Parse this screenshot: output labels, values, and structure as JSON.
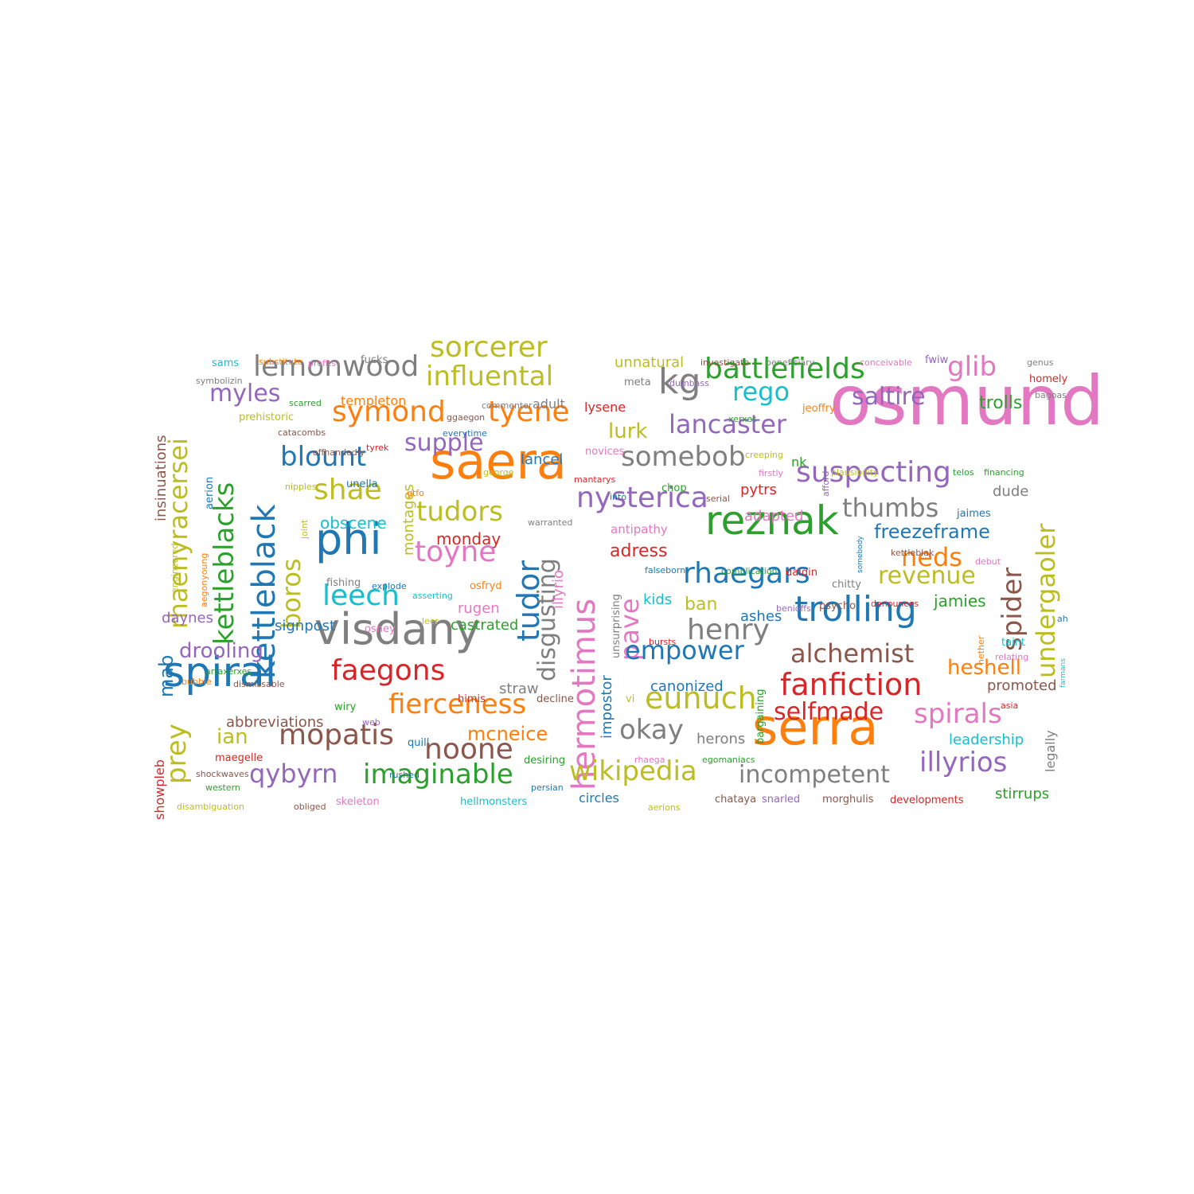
{
  "palette": {
    "blue": "#1f77b4",
    "orange": "#ff7f0e",
    "green": "#2ca02c",
    "red": "#d62728",
    "purple": "#9467bd",
    "brown": "#8c564b",
    "pink": "#e377c2",
    "gray": "#7f7f7f",
    "olive": "#bcbd22",
    "cyan": "#17becf"
  },
  "words": [
    "osmund",
    "saera",
    "serra",
    "visdany",
    "spiral",
    "phi",
    "reznak",
    "trolling",
    "kg",
    "hermotimus",
    "kettleblack",
    "kettleblacks",
    "rhaenyracersei",
    "spider",
    "undergaoler",
    "lemonwood",
    "battlefields",
    "sorcerer",
    "influental",
    "symond",
    "tyene",
    "nysterica",
    "suspecting",
    "rhaegars",
    "somebob",
    "blount",
    "lancaster",
    "glib",
    "saltire",
    "myles",
    "rego",
    "trolls",
    "supple",
    "lurk",
    "shae",
    "tudors",
    "toyne",
    "thumbs",
    "freezeframe",
    "neds",
    "revenue",
    "jamies",
    "henry",
    "leech",
    "boros",
    "tudor",
    "disgusting",
    "pave",
    "empower",
    "alchemist",
    "heshell",
    "fanfiction",
    "selfmade",
    "spirals",
    "eunuch",
    "okay",
    "illyrios",
    "incompetent",
    "wikipedia",
    "imaginable",
    "noone",
    "mopatis",
    "qybyrn",
    "faegons",
    "fierceness",
    "mcneice",
    "drooling",
    "prey",
    "mab",
    "daynes",
    "ian",
    "abbreviations",
    "insinuations",
    "showpleb",
    "promoted",
    "legally",
    "leadership",
    "stirrups",
    "developments",
    "morghulis",
    "snarled",
    "chataya",
    "circles",
    "hellmonsters",
    "skeleton",
    "obliged",
    "disambiguation",
    "adress",
    "monday",
    "castrated",
    "rugen",
    "signpost",
    "kids",
    "ban",
    "ashes",
    "canonized",
    "straw",
    "herons",
    "osfryd",
    "lysene",
    "adult",
    "templeton",
    "unnatural",
    "meta",
    "investigate",
    "beneficiary",
    "conceivable",
    "fwiw",
    "genus",
    "homely",
    "bagoas",
    "jeoffry",
    "dude",
    "pytrs",
    "adapted",
    "antipathy",
    "jaimes",
    "somebody",
    "kettleblak",
    "debut",
    "falseborn",
    "complication",
    "chitty",
    "daidin",
    "psycho",
    "benioffs",
    "denounces",
    "bursts",
    "nether",
    "taint",
    "relating",
    "farmans",
    "ah",
    "asia",
    "telos",
    "financing",
    "plausibility",
    "afford",
    "firstly",
    "creeping",
    "nk",
    "xerxes",
    "chop",
    "serial",
    "mantarys",
    "into",
    "lancel",
    "novices",
    "george",
    "warranted",
    "illyrio",
    "impostor",
    "unsurprising",
    "vi",
    "decline",
    "himis",
    "bargaining",
    "egomaniacs",
    "rhaega",
    "persian",
    "rushed",
    "desiring",
    "quill",
    "web",
    "wiry",
    "western",
    "shockwaves",
    "maegelle",
    "bubble",
    "dismissable",
    "artaxerxes",
    "fishing",
    "explode",
    "asserting",
    "osney",
    "leer",
    "obscene",
    "montages",
    "joint",
    "nipples",
    "unella",
    "gtfo",
    "aerion",
    "aegonyoung",
    "engineered",
    "offhandedly",
    "tyrek",
    "catacombs",
    "everytime",
    "prehistoric",
    "scarred",
    "symbolizin",
    "sams",
    "substitute",
    "profits",
    "fucks",
    "commenter",
    "ggaegon",
    "dumbass",
    "aerions"
  ]
}
